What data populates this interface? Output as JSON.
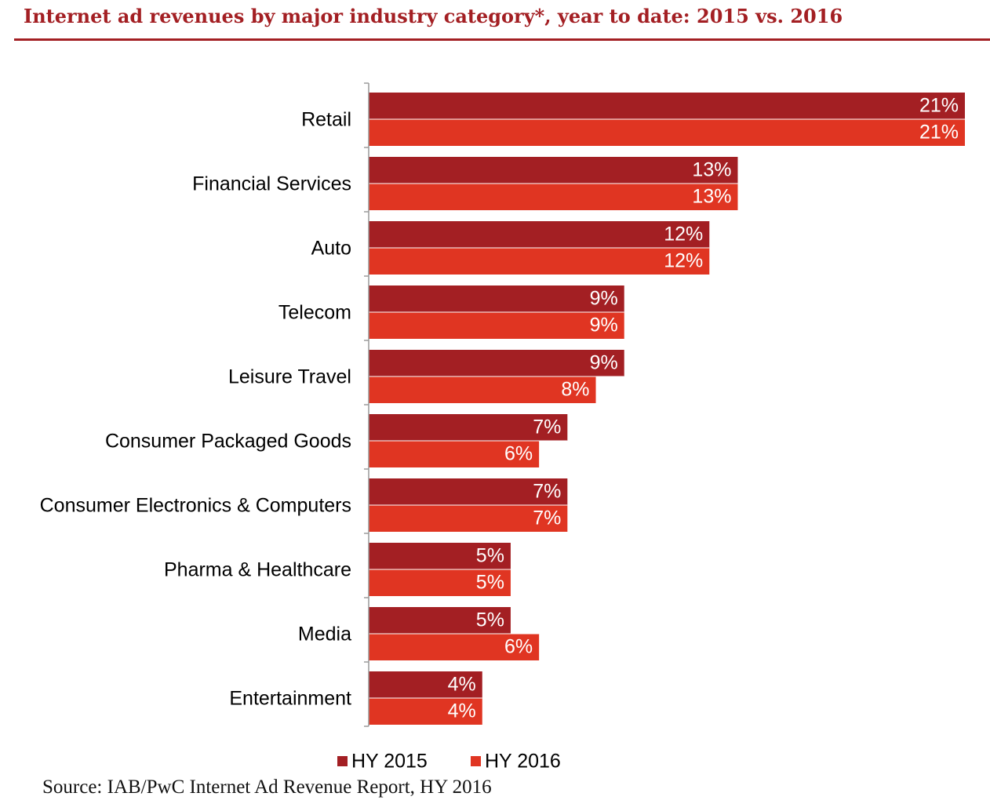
{
  "header": {
    "title": "Internet ad revenues by major industry category*, year to date: 2015 vs. 2016"
  },
  "footer": {
    "source": "Source: IAB/PwC Internet Ad Revenue Report, HY 2016"
  },
  "colors": {
    "series_2015": "#a31f23",
    "series_2016": "#e03522",
    "title": "#a31f23"
  },
  "chart_data": {
    "type": "bar",
    "orientation": "horizontal",
    "title": "Internet ad revenues by major industry category*, year to date: 2015 vs. 2016",
    "categories": [
      "Retail",
      "Financial Services",
      "Auto",
      "Telecom",
      "Leisure Travel",
      "Consumer Packaged Goods",
      "Consumer Electronics & Computers",
      "Pharma & Healthcare",
      "Media",
      "Entertainment"
    ],
    "series": [
      {
        "name": "HY 2015",
        "values": [
          21,
          13,
          12,
          9,
          9,
          7,
          7,
          5,
          5,
          4
        ],
        "labels": [
          "21%",
          "13%",
          "12%",
          "9%",
          "9%",
          "7%",
          "7%",
          "5%",
          "5%",
          "4%"
        ]
      },
      {
        "name": "HY 2016",
        "values": [
          21,
          13,
          12,
          9,
          8,
          6,
          7,
          5,
          6,
          4
        ],
        "labels": [
          "21%",
          "13%",
          "12%",
          "9%",
          "8%",
          "6%",
          "7%",
          "5%",
          "6%",
          "4%"
        ]
      }
    ],
    "xlim": [
      0,
      21
    ],
    "grid": false,
    "legend": "bottom"
  }
}
